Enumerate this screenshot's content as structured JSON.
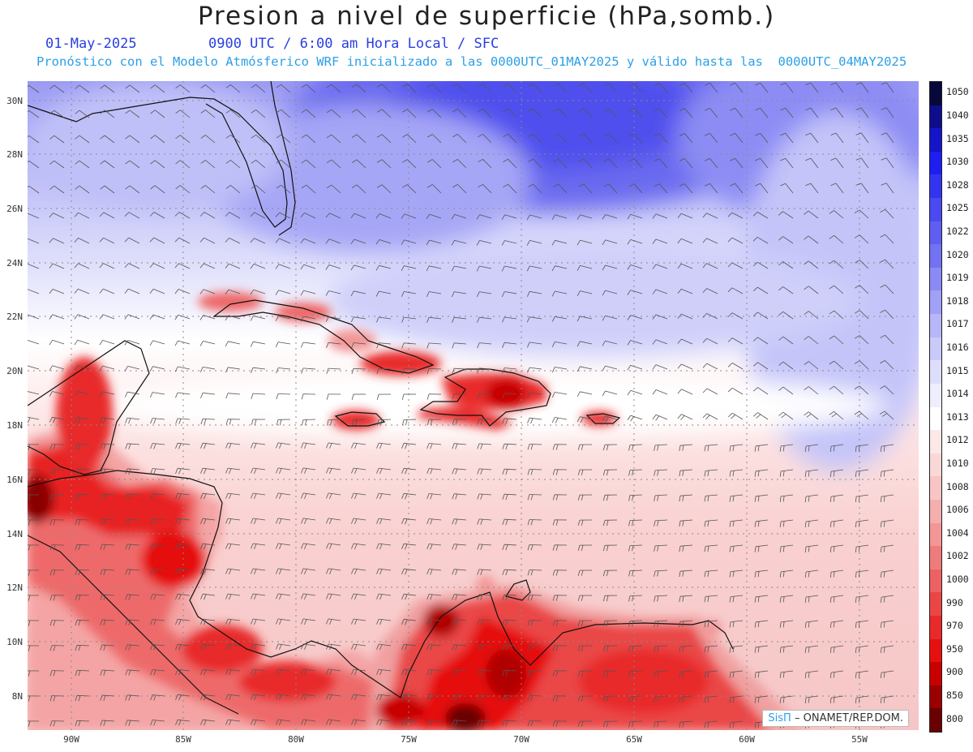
{
  "header": {
    "title": "Presion a nivel de superficie (hPa,somb.)",
    "date": "01-May-2025",
    "time_info": "0900 UTC / 6:00 am Hora Local / SFC",
    "model_info": "Pronóstico con el Modelo Atmósferico WRF inicializado a las 0000UTC_01MAY2025 y válido hasta las  0000UTC_04MAY2025"
  },
  "map": {
    "lat_labels": [
      "30N",
      "28N",
      "26N",
      "24N",
      "22N",
      "20N",
      "18N",
      "16N",
      "14N",
      "12N",
      "10N",
      "8N"
    ],
    "lon_labels": [
      "90W",
      "85W",
      "80W",
      "75W",
      "70W",
      "65W",
      "60W",
      "55W"
    ],
    "lat_values": [
      30,
      28,
      26,
      24,
      22,
      20,
      18,
      16,
      14,
      12,
      10,
      8
    ],
    "lon_values": [
      -90,
      -85,
      -80,
      -75,
      -70,
      -65,
      -60,
      -55
    ],
    "credit_logo": "SisΠ",
    "credit_text": " – ONAMET/REP.DOM."
  },
  "colorbar": {
    "labels": [
      "1050",
      "1040",
      "1035",
      "1030",
      "1028",
      "1025",
      "1022",
      "1020",
      "1019",
      "1018",
      "1017",
      "1016",
      "1015",
      "1014",
      "1013",
      "1012",
      "1010",
      "1008",
      "1006",
      "1004",
      "1002",
      "1000",
      "990",
      "970",
      "950",
      "900",
      "850",
      "800"
    ],
    "colors": [
      "#08083a",
      "#0d0d8e",
      "#1414c8",
      "#1e1ef0",
      "#3434f0",
      "#4a4af0",
      "#5e5ef0",
      "#7272f2",
      "#8a8af4",
      "#a0a0f6",
      "#b6b6f8",
      "#cacafa",
      "#dedefc",
      "#eeeefe",
      "#ffffff",
      "#fde8e8",
      "#fbd8d8",
      "#f8c4c4",
      "#f5aeae",
      "#f29696",
      "#ef7c7c",
      "#ec6262",
      "#ea4646",
      "#e82a2a",
      "#e61010",
      "#c80000",
      "#9a0000",
      "#6a0000"
    ]
  }
}
